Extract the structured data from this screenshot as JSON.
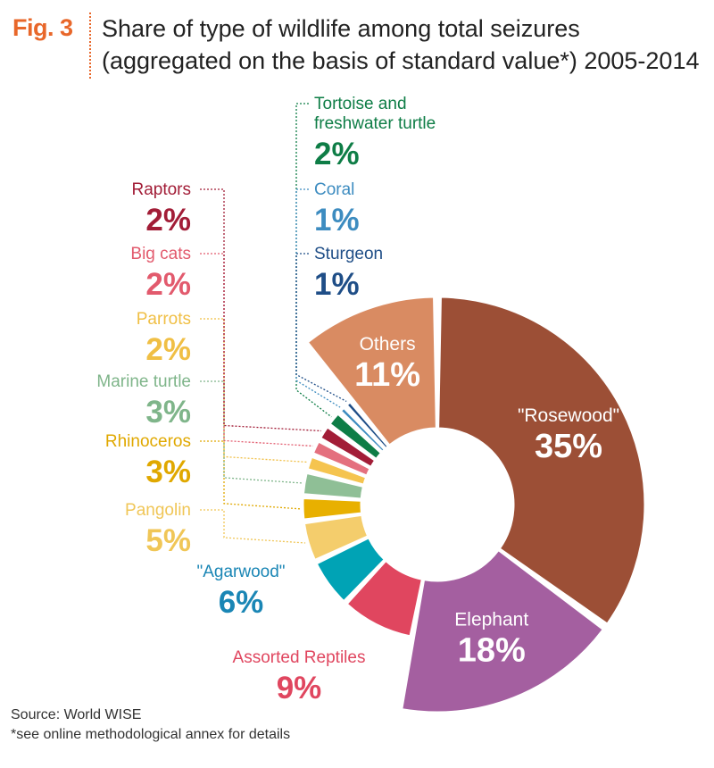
{
  "figure": {
    "label": "Fig. 3",
    "title": "Share of type of wildlife among total seizures (aggregated on the basis of standard value*) 2005-2014"
  },
  "chart_data": {
    "type": "pie",
    "variant": "exploded donut",
    "slices": [
      {
        "label": "\"Rosewood\"",
        "value": 35,
        "display": "35%",
        "color": "#9c4f36",
        "label_inside": true
      },
      {
        "label": "Elephant",
        "value": 18,
        "display": "18%",
        "color": "#a45fa0",
        "label_inside": true
      },
      {
        "label": "Assorted Reptiles",
        "value": 9,
        "display": "9%",
        "color": "#e0465f",
        "label_inside": false
      },
      {
        "label": "\"Agarwood\"",
        "value": 6,
        "display": "6%",
        "color": "#00a3b5",
        "label_inside": false
      },
      {
        "label": "Pangolin",
        "value": 5,
        "display": "5%",
        "color": "#f4cd6c",
        "label_inside": false
      },
      {
        "label": "Rhinoceros",
        "value": 3,
        "display": "3%",
        "color": "#e8b000",
        "label_inside": false
      },
      {
        "label": "Marine turtle",
        "value": 3,
        "display": "3%",
        "color": "#8fbf96",
        "label_inside": false
      },
      {
        "label": "Parrots",
        "value": 2,
        "display": "2%",
        "color": "#f5c44f",
        "label_inside": false
      },
      {
        "label": "Big cats",
        "value": 2,
        "display": "2%",
        "color": "#e4707e",
        "label_inside": false
      },
      {
        "label": "Raptors",
        "value": 2,
        "display": "2%",
        "color": "#a21d37",
        "label_inside": false
      },
      {
        "label": "Tortoise and freshwater turtle",
        "value": 2,
        "display": "2%",
        "color": "#0e7d46",
        "label_inside": false
      },
      {
        "label": "Coral",
        "value": 1,
        "display": "1%",
        "color": "#3d8cc0",
        "label_inside": false
      },
      {
        "label": "Sturgeon",
        "value": 1,
        "display": "1%",
        "color": "#1f4e87",
        "label_inside": false
      },
      {
        "label": "Others",
        "value": 11,
        "display": "11%",
        "color": "#d98b62",
        "label_inside": true
      }
    ]
  },
  "footer": {
    "source": "Source: World WISE",
    "note": "*see online methodological annex for details"
  }
}
